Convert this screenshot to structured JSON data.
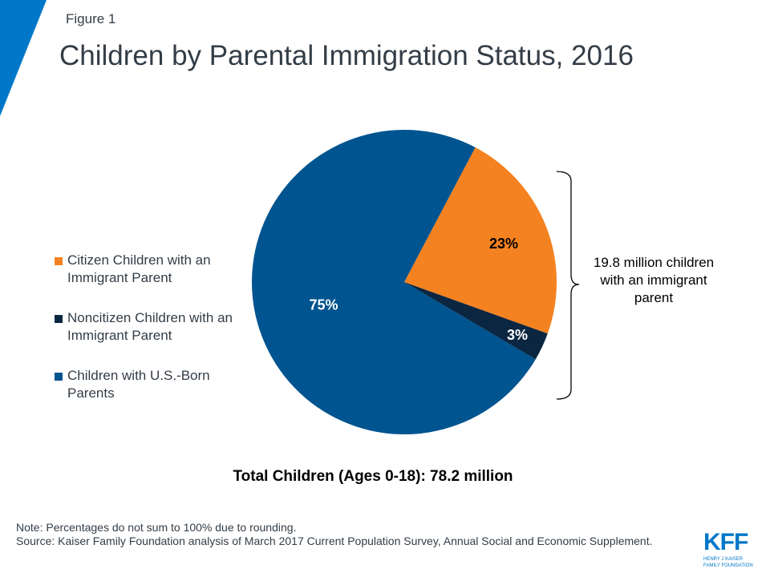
{
  "figure_label": "Figure 1",
  "colors": {
    "accent": "#0077c8",
    "citizen": "#f58220",
    "noncitizen": "#0b2641",
    "us_born": "#00548f"
  },
  "chart_data": {
    "type": "pie",
    "title": "Children by Parental Immigration Status, 2016",
    "slices": [
      {
        "name": "Citizen Children with an Immigrant Parent",
        "value": 23,
        "label": "23%",
        "color": "#f58220"
      },
      {
        "name": "Noncitizen Children with an Immigrant Parent",
        "value": 3,
        "label": "3%",
        "color": "#0b2641"
      },
      {
        "name": "Children with U.S.-Born Parents",
        "value": 75,
        "label": "75%",
        "color": "#00548f"
      }
    ],
    "legend_placement": "left",
    "annotation": "19.8 million children with an immigrant parent",
    "total_label": "Total Children (Ages 0-18): 78.2 million"
  },
  "notes": {
    "note": "Note: Percentages do not sum to 100% due to rounding.",
    "source": "Source: Kaiser Family Foundation analysis of March 2017 Current Population Survey, Annual Social and Economic Supplement."
  },
  "logo": {
    "main": "KFF",
    "line1": "HENRY J KAISER",
    "line2": "FAMILY FOUNDATION"
  }
}
